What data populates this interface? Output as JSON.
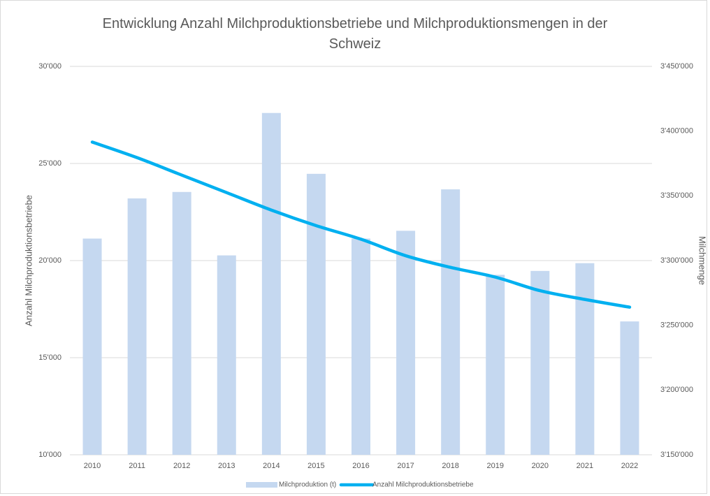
{
  "chart_data": {
    "type": "bar_line",
    "title": "Entwicklung Anzahl Milchproduktionsbetriebe und Milchproduktionsmengen in der Schweiz",
    "y_label": "Anzahl Milchproduktionsbetriebe",
    "y2_label": "Milchmenge",
    "categories": [
      "2010",
      "2011",
      "2012",
      "2013",
      "2014",
      "2015",
      "2016",
      "2017",
      "2018",
      "2019",
      "2020",
      "2021",
      "2022"
    ],
    "series": [
      {
        "name": "Milchproduktion (t)",
        "type": "bar",
        "axis": "y2",
        "color": "#c5d8f0",
        "values": [
          3317000,
          3348000,
          3353000,
          3304000,
          3414000,
          3367000,
          3317000,
          3323000,
          3355000,
          3289000,
          3292000,
          3298000,
          3253000
        ]
      },
      {
        "name": "Anzahl Milchproduktionsbetriebe",
        "type": "line",
        "axis": "y",
        "color": "#00b0f0",
        "values": [
          26100,
          25300,
          24400,
          23500,
          22600,
          21800,
          21100,
          20250,
          19650,
          19150,
          18450,
          18000,
          17600
        ]
      }
    ],
    "ylim": [
      10000,
      30000
    ],
    "yticks": [
      {
        "value": 10000,
        "label": "10'000"
      },
      {
        "value": 15000,
        "label": "15'000"
      },
      {
        "value": 20000,
        "label": "20'000"
      },
      {
        "value": 25000,
        "label": "25'000"
      },
      {
        "value": 30000,
        "label": "30'000"
      }
    ],
    "y2lim": [
      3150000,
      3450000
    ],
    "y2ticks": [
      {
        "value": 3150000,
        "label": "3'150'000"
      },
      {
        "value": 3200000,
        "label": "3'200'000"
      },
      {
        "value": 3250000,
        "label": "3'250'000"
      },
      {
        "value": 3300000,
        "label": "3'300'000"
      },
      {
        "value": 3350000,
        "label": "3'350'000"
      },
      {
        "value": 3400000,
        "label": "3'400'000"
      },
      {
        "value": 3450000,
        "label": "3'450'000"
      }
    ],
    "grid": true,
    "legend": "bottom"
  }
}
